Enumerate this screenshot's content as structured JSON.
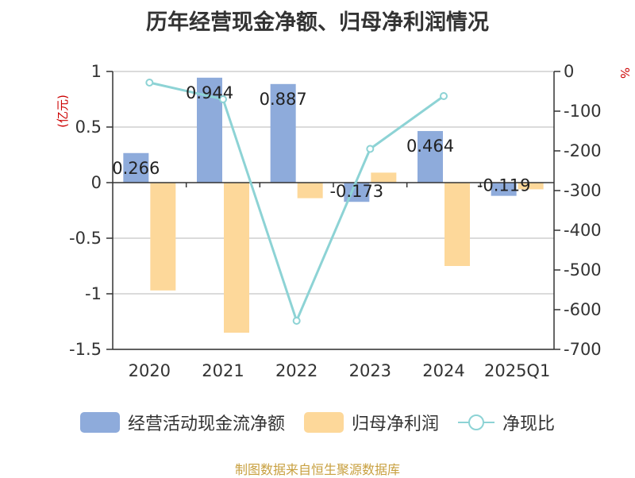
{
  "chart_data": {
    "type": "bar",
    "title": "历年经营现金净额、归母净利润情况",
    "categories": [
      "2020",
      "2021",
      "2022",
      "2023",
      "2024",
      "2025Q1"
    ],
    "left_axis": {
      "unit": "(亿元)",
      "ylim": [
        -1.5,
        1
      ],
      "ticks": [
        1,
        0.5,
        0,
        -0.5,
        -1,
        -1.5
      ],
      "tick_labels": [
        "1",
        "0.5",
        "0",
        "-0.5",
        "-1",
        "-1.5"
      ]
    },
    "right_axis": {
      "unit": "%",
      "ylim": [
        -700,
        0
      ],
      "ticks": [
        0,
        -100,
        -200,
        -300,
        -400,
        -500,
        -600,
        -700
      ],
      "tick_labels": [
        "0",
        "-100",
        "-200",
        "-300",
        "-400",
        "-500",
        "-600",
        "-700"
      ]
    },
    "series": [
      {
        "name": "经营活动现金流净额",
        "kind": "bar",
        "axis": "left",
        "color": "#8eabdb",
        "values": [
          0.266,
          0.944,
          0.887,
          -0.173,
          0.464,
          -0.119
        ],
        "labels": [
          "0.266",
          "0.944",
          "0.887",
          "-0.173",
          "0.464",
          "-0.119"
        ]
      },
      {
        "name": "归母净利润",
        "kind": "bar",
        "axis": "left",
        "color": "#fdd89a",
        "values": [
          -0.97,
          -1.35,
          -0.14,
          0.09,
          -0.75,
          -0.06
        ]
      },
      {
        "name": "净现比",
        "kind": "line",
        "axis": "right",
        "color": "#8dd3d5",
        "values": [
          -28,
          -70,
          -628,
          -195,
          -62,
          null
        ]
      }
    ],
    "grid": true,
    "legend_position": "bottom"
  },
  "footer": {
    "source": "制图数据来自恒生聚源数据库"
  }
}
